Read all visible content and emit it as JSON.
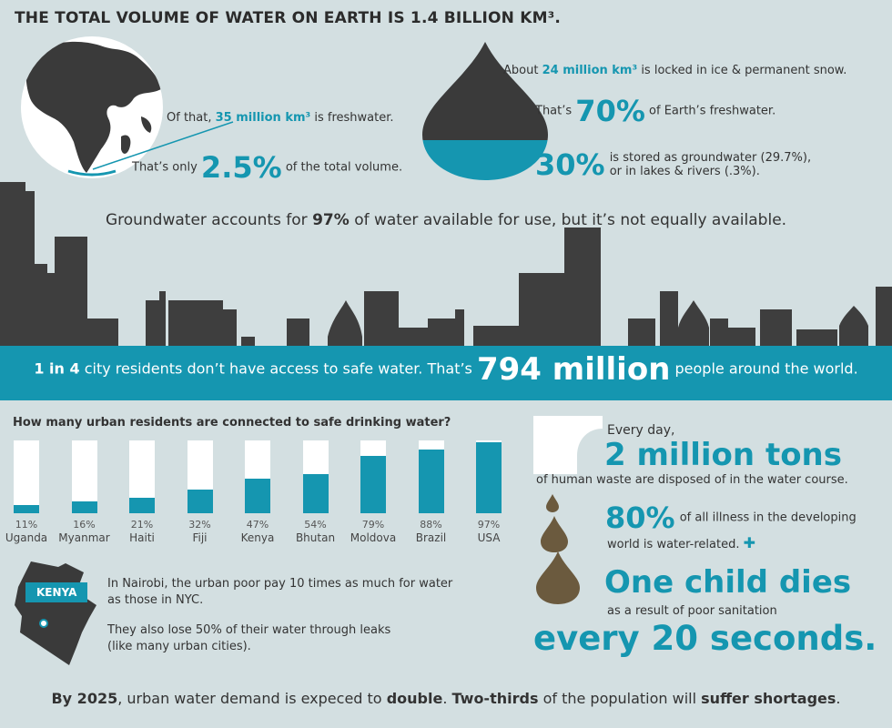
{
  "title": "THE TOTAL VOLUME OF WATER ON EARTH IS 1.4 BILLION KM³.",
  "freshwater": {
    "pre": "Of that,",
    "highlight": "35 million km³",
    "post": "is freshwater."
  },
  "only": {
    "pre": "That’s only",
    "pct": "2.5%",
    "post": "of the total volume."
  },
  "ice": {
    "pre": "About",
    "highlight": "24 million km³",
    "post": "is locked in ice & permanent snow."
  },
  "seventy": {
    "pre": "That’s",
    "pct": "70%",
    "post": "of Earth’s freshwater."
  },
  "thirty": {
    "pct": "30%",
    "line1": "is stored as groundwater (29.7%),",
    "line2": "or in lakes & rivers (.3%)."
  },
  "groundwater": {
    "pre": "Groundwater accounts for",
    "highlight": "97%",
    "post": "of water available for use, but it’s not equally available."
  },
  "band": {
    "lead": "1 in 4",
    "mid": "city residents don’t have access to safe water. That’s",
    "big": "794 million",
    "post": "people around the world."
  },
  "chart_data": {
    "type": "bar",
    "title": "How many urban residents are connected to safe drinking water?",
    "categories": [
      "Uganda",
      "Myanmar",
      "Haiti",
      "Fiji",
      "Kenya",
      "Bhutan",
      "Moldova",
      "Brazil",
      "USA"
    ],
    "values": [
      11,
      16,
      21,
      32,
      47,
      54,
      79,
      88,
      97
    ],
    "labels": [
      "11%",
      "16%",
      "21%",
      "32%",
      "47%",
      "54%",
      "79%",
      "88%",
      "97%"
    ],
    "ylim": [
      0,
      100
    ]
  },
  "kenya": {
    "label": "KENYA",
    "text1a": "In Nairobi, the urban poor pay 10 times as much for water",
    "text1b": "as those in NYC.",
    "text2a": "They also lose 50% of their water through leaks",
    "text2b": "(like many urban cities)."
  },
  "waste": {
    "lead": "Every day,",
    "big": "2 million tons",
    "post": "of human waste are disposed of in the water course."
  },
  "illness": {
    "pct": "80%",
    "line1": "of all illness in the developing",
    "line2": "world is water-related."
  },
  "child": {
    "big": "One child dies",
    "mid": "as a result of poor sanitation",
    "end": "every 20 seconds."
  },
  "footer": {
    "y": "By 2025",
    "a": ", urban water demand is expeced to",
    "b": "double",
    "c": ".",
    "d": "Two-thirds",
    "e": "of the population will",
    "f": "suffer shortages",
    "g": "."
  },
  "colors": {
    "teal": "#1596b0",
    "dark": "#3a3a3a",
    "bg": "#d3dfe1",
    "brown": "#6b5a3e"
  }
}
